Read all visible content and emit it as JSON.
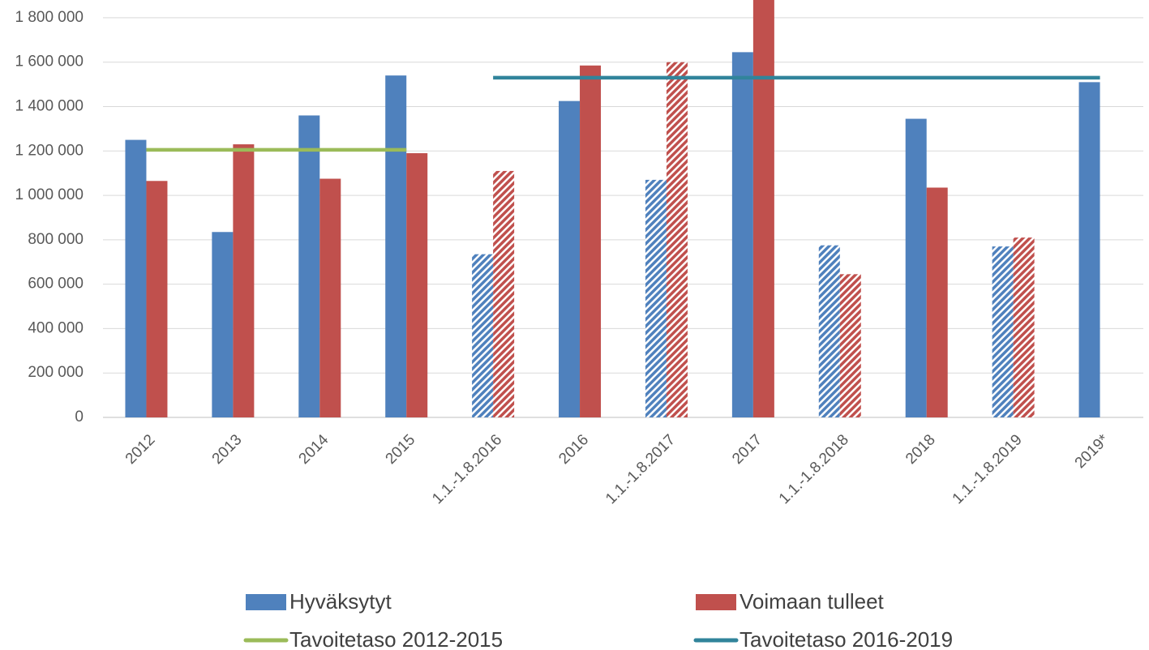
{
  "chart_data": {
    "type": "bar",
    "categories": [
      "2012",
      "2013",
      "2014",
      "2015",
      "1.1.-1.8.2016",
      "2016",
      "1.1.-1.8.2017",
      "2017",
      "1.1.-1.8.2018",
      "2018",
      "1.1.-1.8.2019",
      "2019*"
    ],
    "series": [
      {
        "name": "Hyväksytyt",
        "color": "#4f81bd",
        "type": "bar",
        "values": [
          1250000,
          835000,
          1360000,
          1540000,
          735000,
          1425000,
          1070000,
          1645000,
          775000,
          1345000,
          770000,
          1510000
        ],
        "hatched": [
          false,
          false,
          false,
          false,
          true,
          false,
          true,
          false,
          true,
          false,
          true,
          false
        ]
      },
      {
        "name": "Voimaan tulleet",
        "color": "#c0504d",
        "type": "bar",
        "values": [
          1065000,
          1230000,
          1075000,
          1190000,
          1110000,
          1585000,
          1600000,
          1900000,
          645000,
          1035000,
          810000,
          null
        ],
        "hatched": [
          false,
          false,
          false,
          false,
          true,
          false,
          true,
          false,
          true,
          false,
          true,
          false
        ]
      },
      {
        "name": "Tavoitetaso 2012-2015",
        "color": "#9bbb59",
        "type": "line",
        "values": [
          1205000,
          1205000,
          1205000,
          1205000,
          null,
          null,
          null,
          null,
          null,
          null,
          null,
          null
        ]
      },
      {
        "name": "Tavoitetaso 2016-2019",
        "color": "#31849b",
        "type": "line",
        "values": [
          null,
          null,
          null,
          null,
          1530000,
          1530000,
          1530000,
          1530000,
          1530000,
          1530000,
          1530000,
          1530000
        ]
      }
    ],
    "ylim": [
      0,
      1880000
    ],
    "yticks": [
      0,
      {
        "value": 200000,
        "label": "200 000"
      },
      {
        "value": 400000,
        "label": "400 000"
      },
      {
        "value": 600000,
        "label": "600 000"
      },
      {
        "value": 800000,
        "label": "800 000"
      },
      {
        "value": 1000000,
        "label": "1 000 000"
      },
      {
        "value": 1200000,
        "label": "1 200 000"
      },
      {
        "value": 1400000,
        "label": "1 400 000"
      },
      {
        "value": 1600000,
        "label": "1 600 000"
      },
      {
        "value": 1800000,
        "label": "1 800 000"
      }
    ],
    "grid": true,
    "legend": "bottom"
  }
}
